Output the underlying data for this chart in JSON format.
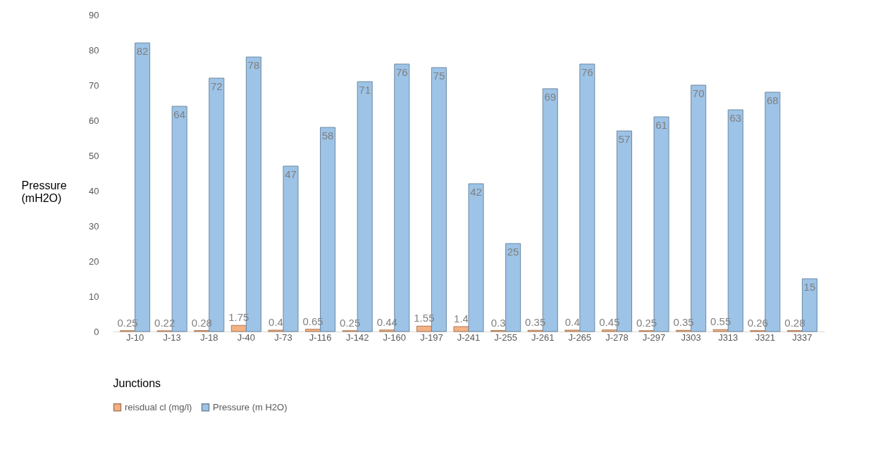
{
  "chart_data": {
    "type": "bar",
    "xlabel": "Junctions",
    "ylabel": "Pressure (mH2O)",
    "categories": [
      "J-10",
      "J-13",
      "J-18",
      "J-40",
      "J-73",
      "J-116",
      "J-142",
      "J-160",
      "J-197",
      "J-241",
      "J-255",
      "J-261",
      "J-265",
      "J-278",
      "J-297",
      "J303",
      "J313",
      "J321",
      "J337"
    ],
    "series": [
      {
        "name": "reisdual cl (mg/l)",
        "color": "#f4b183",
        "values": [
          0.25,
          0.22,
          0.28,
          1.75,
          0.4,
          0.65,
          0.25,
          0.44,
          1.55,
          1.4,
          0.3,
          0.35,
          0.4,
          0.45,
          0.25,
          0.35,
          0.55,
          0.26,
          0.28
        ]
      },
      {
        "name": "Pressure (m H2O)",
        "color": "#9dc3e6",
        "values": [
          82,
          64,
          72,
          78,
          47,
          58,
          71,
          76,
          75,
          42,
          25,
          69,
          76,
          57,
          61,
          70,
          63,
          68,
          15
        ]
      }
    ],
    "ylim": [
      0,
      90
    ],
    "yticks": [
      0,
      10,
      20,
      30,
      40,
      50,
      60,
      70,
      80,
      90
    ],
    "grid": false,
    "legend": "bottom",
    "data_labels": true
  }
}
